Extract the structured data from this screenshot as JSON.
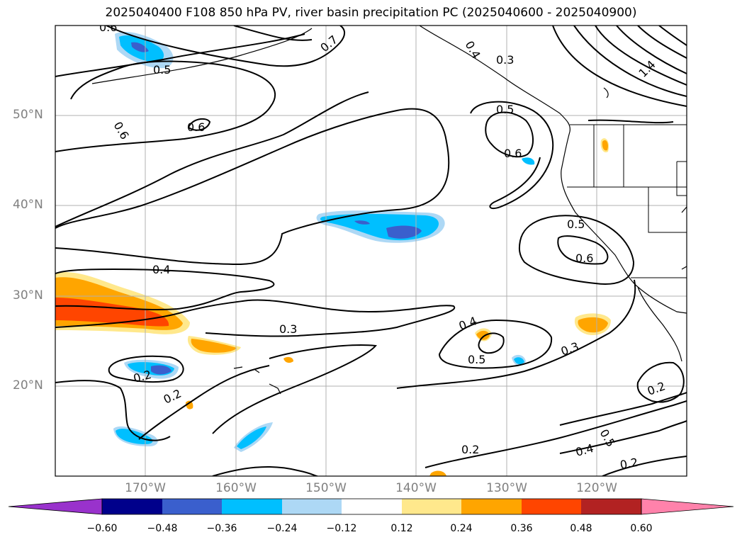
{
  "title": "2025040400 F108 850 hPa PV, river basin precipitation PC (2025040600 - 2025040900)",
  "map": {
    "lon_range": [
      -180,
      -110
    ],
    "lat_range": [
      10,
      60
    ],
    "lat_ticks": [
      "20°N",
      "30°N",
      "40°N",
      "50°N"
    ],
    "lon_ticks": [
      "170°W",
      "160°W",
      "150°W",
      "140°W",
      "130°W",
      "120°W"
    ],
    "contour_labels": [
      "0.6",
      "0.5",
      "0.6",
      "0.6",
      "0.7",
      "0.3",
      "0.4",
      "0.5",
      "0.6",
      "1.4",
      "0.5",
      "0.6",
      "0.4",
      "0.3",
      "0.2",
      "0.2",
      "0.4",
      "0.5",
      "0.3",
      "0.2",
      "0.5",
      "0.4",
      "0.2",
      "0.2"
    ]
  },
  "colorbar": {
    "ticks": [
      "−0.60",
      "−0.48",
      "−0.36",
      "−0.24",
      "−0.12",
      "0.12",
      "0.24",
      "0.36",
      "0.48",
      "0.60"
    ],
    "colors": [
      "#9932cc",
      "#00008b",
      "#3a5fcd",
      "#00bfff",
      "#add8f5",
      "#ffffff",
      "#ffe88c",
      "#ffa500",
      "#ff4500",
      "#b22222",
      "#ff82ab"
    ]
  }
}
